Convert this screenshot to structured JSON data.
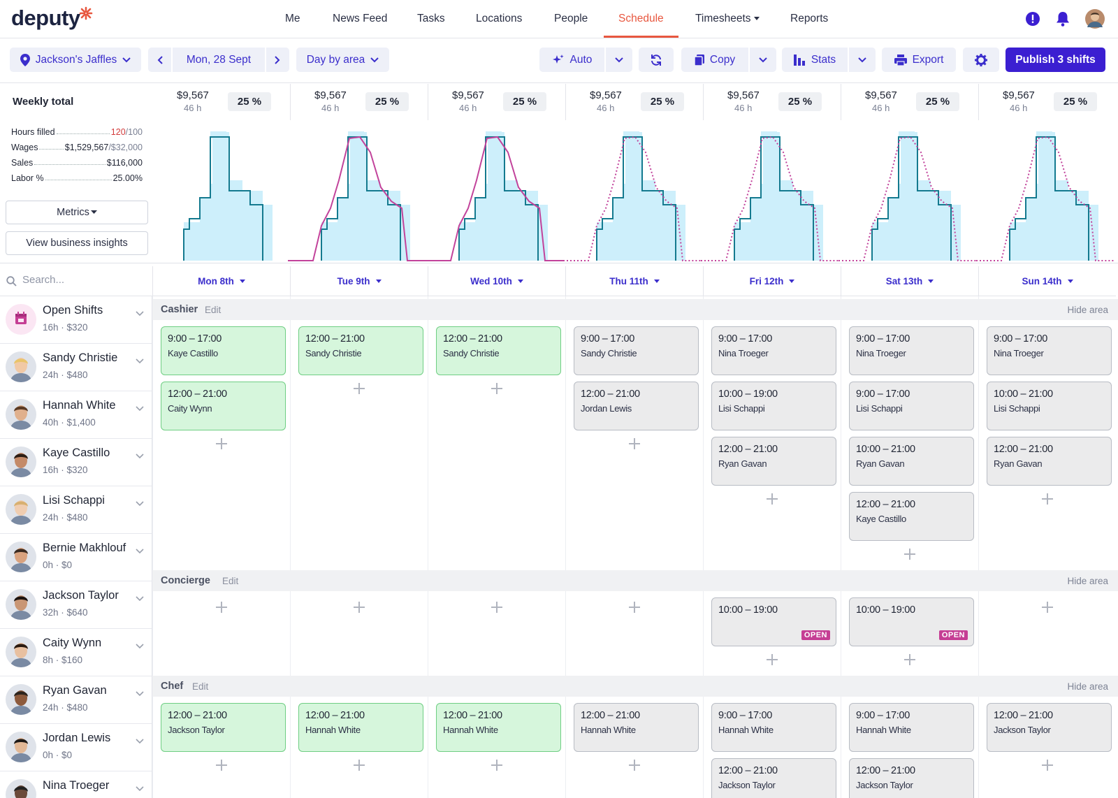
{
  "nav": {
    "logo": "deputy",
    "items": [
      "Me",
      "News Feed",
      "Tasks",
      "Locations",
      "People",
      "Schedule",
      "Timesheets",
      "Reports"
    ],
    "active": "Schedule",
    "accent_color": "#e8573f"
  },
  "toolbar": {
    "location": "Jackson's Jaffles",
    "date": "Mon, 28 Sept",
    "view": "Day by area",
    "auto_label": "Auto",
    "copy_label": "Copy",
    "stats_label": "Stats",
    "export_label": "Export",
    "publish_label": "Publish 3 shifts",
    "brand_color": "#3b1fd1"
  },
  "summary": {
    "title": "Weekly total",
    "metrics": [
      {
        "label": "Hours filled",
        "value": "120",
        "total": "/100"
      },
      {
        "label": "Wages",
        "value": "$1,529,567",
        "total": "/$32,000"
      },
      {
        "label": "Sales",
        "value": "$116,000",
        "total": ""
      },
      {
        "label": "Labor %",
        "value": "25.00%",
        "total": ""
      }
    ],
    "metrics_button": "Metrics",
    "insights_button": "View business insights",
    "days": [
      {
        "amount": "$9,567",
        "hours": "46 h",
        "pct": "25 %"
      },
      {
        "amount": "$9,567",
        "hours": "46 h",
        "pct": "25 %"
      },
      {
        "amount": "$9,567",
        "hours": "46 h",
        "pct": "25 %"
      },
      {
        "amount": "$9,567",
        "hours": "46 h",
        "pct": "25 %"
      },
      {
        "amount": "$9,567",
        "hours": "46 h",
        "pct": "25 %"
      },
      {
        "amount": "$9,567",
        "hours": "46 h",
        "pct": "25 %"
      },
      {
        "amount": "$9,567",
        "hours": "46 h",
        "pct": "25 %"
      }
    ]
  },
  "search": {
    "placeholder": "Search..."
  },
  "day_headers": [
    "Mon 8th",
    "Tue 9th",
    "Wed 10th",
    "Thu 11th",
    "Fri 12th",
    "Sat 13th",
    "Sun 14th"
  ],
  "employees": [
    {
      "name": "Open Shifts",
      "info": "16h · $320",
      "icon": "calendar-icon"
    },
    {
      "name": "Sandy Christie",
      "info": "24h · $480"
    },
    {
      "name": "Hannah White",
      "info": "40h · $1,400"
    },
    {
      "name": "Kaye Castillo",
      "info": "16h · $320"
    },
    {
      "name": "Lisi Schappi",
      "info": "24h · $480"
    },
    {
      "name": "Bernie Makhlouf",
      "info": "0h · $0"
    },
    {
      "name": "Jackson Taylor",
      "info": "32h · $640"
    },
    {
      "name": "Caity Wynn",
      "info": "8h · $160"
    },
    {
      "name": "Ryan Gavan",
      "info": "24h · $480"
    },
    {
      "name": "Jordan Lewis",
      "info": "0h · $0"
    },
    {
      "name": "Nina Troeger",
      "info": ""
    }
  ],
  "areas": [
    {
      "name": "Cashier",
      "edit": "Edit",
      "hide": "Hide area",
      "days": [
        [
          {
            "time": "9:00 – 17:00",
            "name": "Kaye Castillo",
            "status": "published"
          },
          {
            "time": "12:00 – 21:00",
            "name": "Caity Wynn",
            "status": "published"
          }
        ],
        [
          {
            "time": "12:00 – 21:00",
            "name": "Sandy Christie",
            "status": "published"
          }
        ],
        [
          {
            "time": "12:00 – 21:00",
            "name": "Sandy Christie",
            "status": "published"
          }
        ],
        [
          {
            "time": "9:00 – 17:00",
            "name": "Sandy Christie",
            "status": "draft"
          },
          {
            "time": "12:00 – 21:00",
            "name": "Jordan Lewis",
            "status": "draft"
          }
        ],
        [
          {
            "time": "9:00 – 17:00",
            "name": "Nina Troeger",
            "status": "draft"
          },
          {
            "time": "10:00 – 19:00",
            "name": "Lisi Schappi",
            "status": "draft"
          },
          {
            "time": "12:00 – 21:00",
            "name": "Ryan Gavan",
            "status": "draft"
          }
        ],
        [
          {
            "time": "9:00 – 17:00",
            "name": "Nina Troeger",
            "status": "draft"
          },
          {
            "time": "9:00 – 17:00",
            "name": "Lisi Schappi",
            "status": "draft"
          },
          {
            "time": "10:00 – 21:00",
            "name": "Ryan Gavan",
            "status": "draft"
          },
          {
            "time": "12:00 – 21:00",
            "name": "Kaye Castillo",
            "status": "draft"
          }
        ],
        [
          {
            "time": "9:00 – 17:00",
            "name": "Nina Troeger",
            "status": "draft"
          },
          {
            "time": "10:00 – 21:00",
            "name": "Lisi Schappi",
            "status": "draft"
          },
          {
            "time": "12:00 – 21:00",
            "name": "Ryan Gavan",
            "status": "draft"
          }
        ]
      ]
    },
    {
      "name": "Concierge",
      "edit": "Edit",
      "hide": "Hide area",
      "days": [
        [],
        [],
        [],
        [],
        [
          {
            "time": "10:00 – 19:00",
            "name": "",
            "status": "open",
            "badge": "OPEN"
          }
        ],
        [
          {
            "time": "10:00 – 19:00",
            "name": "",
            "status": "open",
            "badge": "OPEN"
          }
        ],
        []
      ]
    },
    {
      "name": "Chef",
      "edit": "Edit",
      "hide": "Hide area",
      "days": [
        [
          {
            "time": "12:00 – 21:00",
            "name": "Jackson Taylor",
            "status": "published"
          }
        ],
        [
          {
            "time": "12:00 – 21:00",
            "name": "Hannah White",
            "status": "published"
          }
        ],
        [
          {
            "time": "12:00 – 21:00",
            "name": "Hannah White",
            "status": "published"
          }
        ],
        [
          {
            "time": "12:00 – 21:00",
            "name": "Hannah White",
            "status": "draft"
          }
        ],
        [
          {
            "time": "9:00 – 17:00",
            "name": "Hannah White",
            "status": "draft"
          },
          {
            "time": "12:00 – 21:00",
            "name": "Jackson Taylor",
            "status": "draft"
          }
        ],
        [
          {
            "time": "9:00 – 17:00",
            "name": "Hannah White",
            "status": "draft"
          },
          {
            "time": "12:00 – 21:00",
            "name": "Jackson Taylor",
            "status": "draft"
          }
        ],
        [
          {
            "time": "12:00 – 21:00",
            "name": "Jackson Taylor",
            "status": "draft"
          }
        ]
      ]
    }
  ],
  "colors": {
    "published_shift": "#d6f6dc",
    "draft_shift": "#ebebec",
    "open_badge": "#c53e94",
    "staffing_fill": "#cdeffb",
    "staffing_line": "#147a8f",
    "demand_line": "#c2439b"
  }
}
